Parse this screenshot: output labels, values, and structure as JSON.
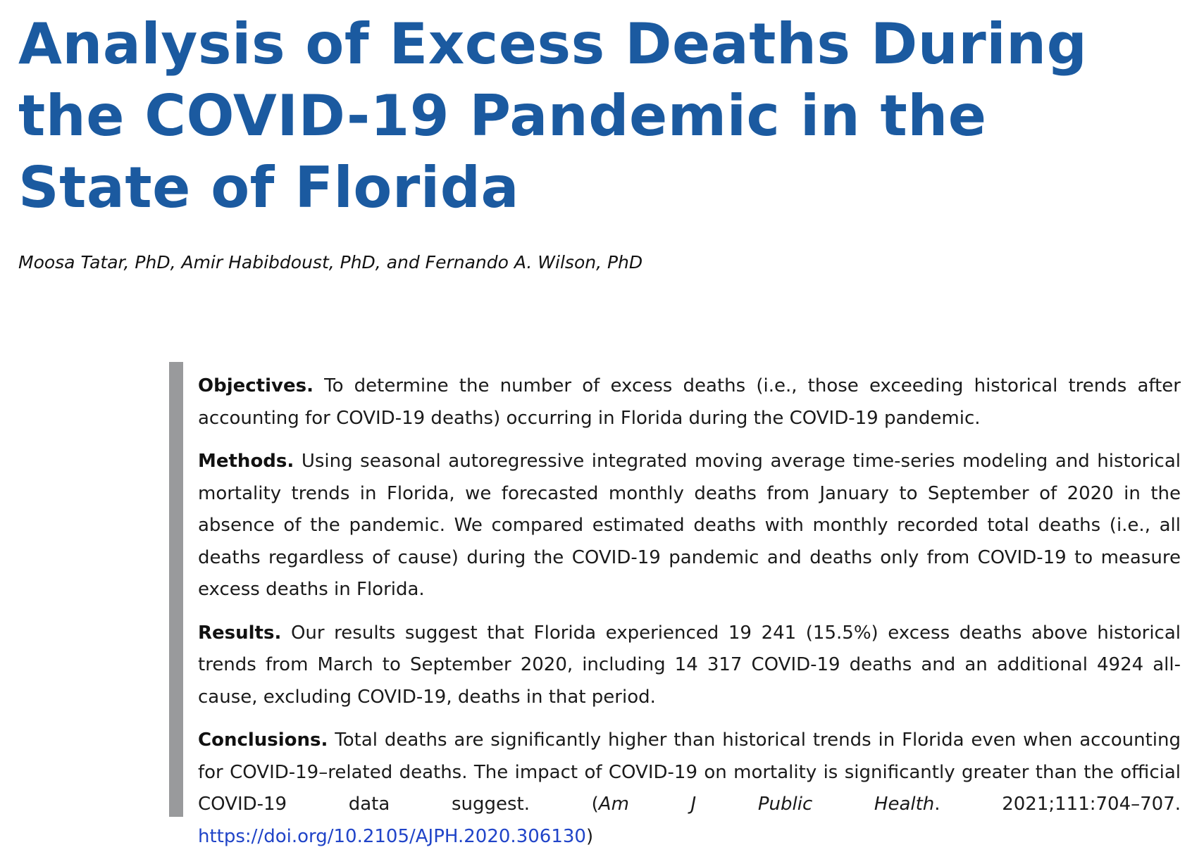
{
  "title": "Analysis of Excess Deaths During the COVID-19 Pandemic in the State of Florida",
  "authors": "Moosa Tatar, PhD, Amir Habibdoust, PhD, and Fernando A. Wilson, PhD",
  "abstract": {
    "objectives": {
      "label": "Objectives.",
      "text": "To determine the number of excess deaths (i.e., those exceeding historical trends after accounting for COVID-19 deaths) occurring in Florida during the COVID-19 pandemic."
    },
    "methods": {
      "label": "Methods.",
      "text": "Using seasonal autoregressive integrated moving average time-series modeling and historical mortality trends in Florida, we forecasted monthly deaths from January to September of 2020 in the absence of the pandemic. We compared estimated deaths with monthly recorded total deaths (i.e., all deaths regardless of cause) during the COVID-19 pandemic and deaths only from COVID-19 to measure excess deaths in Florida."
    },
    "results": {
      "label": "Results.",
      "text": "Our results suggest that Florida experienced 19 241 (15.5%) excess deaths above historical trends from March to September 2020, including 14 317 COVID-19 deaths and an additional 4924 all-cause, excluding COVID-19, deaths in that period."
    },
    "conclusions": {
      "label": "Conclusions.",
      "text": "Total deaths are significantly higher than historical trends in Florida even when accounting for COVID-19–related deaths. The impact of COVID-19 on mortality is significantly greater than the official COVID-19 data suggest. (",
      "journal": "Am J Public Health",
      "citation": ". 2021;111:704–707. ",
      "doi": "https://doi.org/10.2105/AJPH.2020.306130",
      "closing": ")"
    }
  },
  "colors": {
    "title": "#1b5aa0",
    "sidebar_bar": "#999a9c",
    "link": "#2044c8"
  }
}
